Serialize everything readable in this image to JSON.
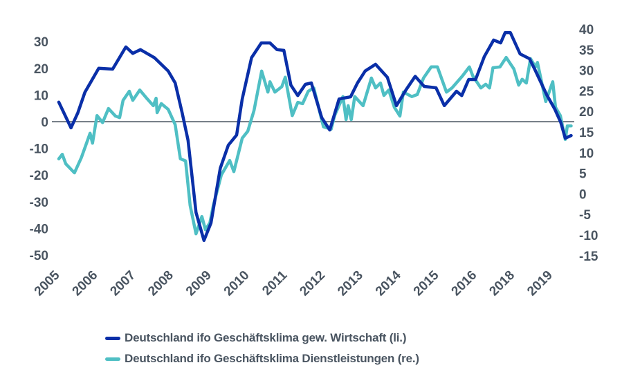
{
  "chart_data": {
    "type": "line",
    "title": "",
    "x_tick_labels": [
      "2005",
      "2006",
      "2007",
      "2008",
      "2009",
      "2010",
      "2011",
      "2012",
      "2013",
      "2014",
      "2015",
      "2016",
      "2018",
      "2019"
    ],
    "y_left": {
      "ticks": [
        30,
        20,
        10,
        0,
        -10,
        -20,
        -30,
        -40,
        -50
      ],
      "ylim": [
        -50,
        30
      ]
    },
    "y_right": {
      "ticks": [
        40,
        35,
        30,
        25,
        20,
        15,
        10,
        5,
        0,
        -5,
        -10,
        -15
      ],
      "ylim": [
        -15,
        40
      ]
    },
    "xlim": [
      2005.0,
      2019.8
    ],
    "zero_line": true,
    "grid": false,
    "legend_placement": "bottom",
    "series": [
      {
        "name": "Deutschland ifo Geschäftsklima gew. Wirtschaft (li.)",
        "axis": "left",
        "color": "#0a2fa8",
        "x": [
          2005.0,
          2005.35,
          2005.55,
          2005.75,
          2006.15,
          2006.55,
          2006.93,
          2007.13,
          2007.35,
          2007.75,
          2008.15,
          2008.35,
          2008.55,
          2008.72,
          2008.95,
          2009.18,
          2009.38,
          2009.65,
          2009.88,
          2010.12,
          2010.28,
          2010.55,
          2010.83,
          2011.08,
          2011.28,
          2011.48,
          2011.68,
          2011.88,
          2012.1,
          2012.27,
          2012.57,
          2012.8,
          2013.07,
          2013.4,
          2013.6,
          2013.82,
          2014.12,
          2014.46,
          2014.72,
          2015.0,
          2015.26,
          2015.52,
          2015.86,
          2016.1,
          2016.45,
          2016.6,
          2016.8,
          2017.0,
          2017.25,
          2017.52,
          2017.72,
          2017.85,
          2018.0,
          2018.28,
          2018.55,
          2018.7,
          2019.05,
          2019.28,
          2019.45,
          2019.58,
          2019.75
        ],
        "values": [
          7.3,
          -2.3,
          3.4,
          11,
          20,
          19.7,
          28,
          25.6,
          27,
          24,
          19,
          14.5,
          3.4,
          -7,
          -34,
          -44.5,
          -38,
          -17.4,
          -8.8,
          -5,
          8.5,
          24,
          29.5,
          29.5,
          27,
          26.7,
          13.7,
          9.8,
          14,
          14.5,
          1.5,
          -3.1,
          8.5,
          9.3,
          14.5,
          19,
          21.5,
          16.6,
          6,
          12,
          17,
          13.2,
          12.7,
          6,
          11.4,
          9.8,
          15.8,
          15.8,
          24.4,
          30.6,
          29.5,
          33.4,
          33.4,
          25.4,
          23.6,
          19.7,
          10,
          4.7,
          -0.2,
          -6.2,
          -5.2
        ]
      },
      {
        "name": "Deutschland ifo Geschäftsklima Dienstleistungen (re.)",
        "axis": "right",
        "color": "#4fbfc4",
        "x": [
          2005.0,
          2005.1,
          2005.2,
          2005.45,
          2005.65,
          2005.9,
          2005.97,
          2006.1,
          2006.26,
          2006.43,
          2006.63,
          2006.75,
          2006.85,
          2007.03,
          2007.13,
          2007.33,
          2007.55,
          2007.72,
          2007.8,
          2007.83,
          2007.95,
          2008.15,
          2008.35,
          2008.5,
          2008.65,
          2008.78,
          2008.95,
          2009.12,
          2009.22,
          2009.35,
          2009.45,
          2009.68,
          2009.92,
          2010.04,
          2010.28,
          2010.44,
          2010.62,
          2010.84,
          2011.02,
          2011.08,
          2011.22,
          2011.42,
          2011.52,
          2011.72,
          2011.88,
          2012.02,
          2012.18,
          2012.34,
          2012.62,
          2012.84,
          2012.94,
          2013.18,
          2013.27,
          2013.33,
          2013.42,
          2013.52,
          2013.76,
          2014.0,
          2014.12,
          2014.26,
          2014.36,
          2014.5,
          2014.66,
          2014.82,
          2014.92,
          2015.16,
          2015.32,
          2015.5,
          2015.72,
          2015.9,
          2016.16,
          2016.32,
          2016.62,
          2016.82,
          2016.92,
          2017.15,
          2017.29,
          2017.4,
          2017.5,
          2017.7,
          2017.88,
          2018.1,
          2018.24,
          2018.34,
          2018.46,
          2018.58,
          2018.72,
          2018.78,
          2019.02,
          2019.22,
          2019.3,
          2019.44,
          2019.58,
          2019.64,
          2019.75
        ],
        "values": [
          8.5,
          9.6,
          7.3,
          5.1,
          8.8,
          14.7,
          12.3,
          19,
          17.3,
          20.7,
          18.9,
          18.5,
          22.7,
          24.9,
          22.7,
          25.2,
          23,
          21.4,
          23.2,
          19.7,
          21.9,
          20.5,
          16.8,
          8.5,
          8,
          -2.8,
          -9.7,
          -5.5,
          -8.7,
          -7,
          -2.8,
          4.6,
          8.1,
          5.4,
          13.5,
          15.2,
          20.2,
          29.8,
          24.7,
          27.2,
          24.7,
          26,
          28.3,
          19,
          22.2,
          21.9,
          24.9,
          25.7,
          16.3,
          15.7,
          19,
          23.6,
          18,
          21.4,
          18,
          23.6,
          21.4,
          28.1,
          25.7,
          26.9,
          23.9,
          25.2,
          21,
          18.9,
          24.7,
          23.6,
          24.1,
          28.1,
          30.8,
          30.8,
          24.7,
          25.7,
          28.6,
          30.8,
          28.6,
          25.7,
          26.6,
          25.7,
          30.6,
          30.8,
          33.1,
          30.3,
          26.4,
          27.8,
          26.9,
          32.8,
          30.8,
          31.9,
          22.4,
          27.2,
          21,
          19,
          13.2,
          16.5,
          16.5
        ]
      }
    ]
  }
}
